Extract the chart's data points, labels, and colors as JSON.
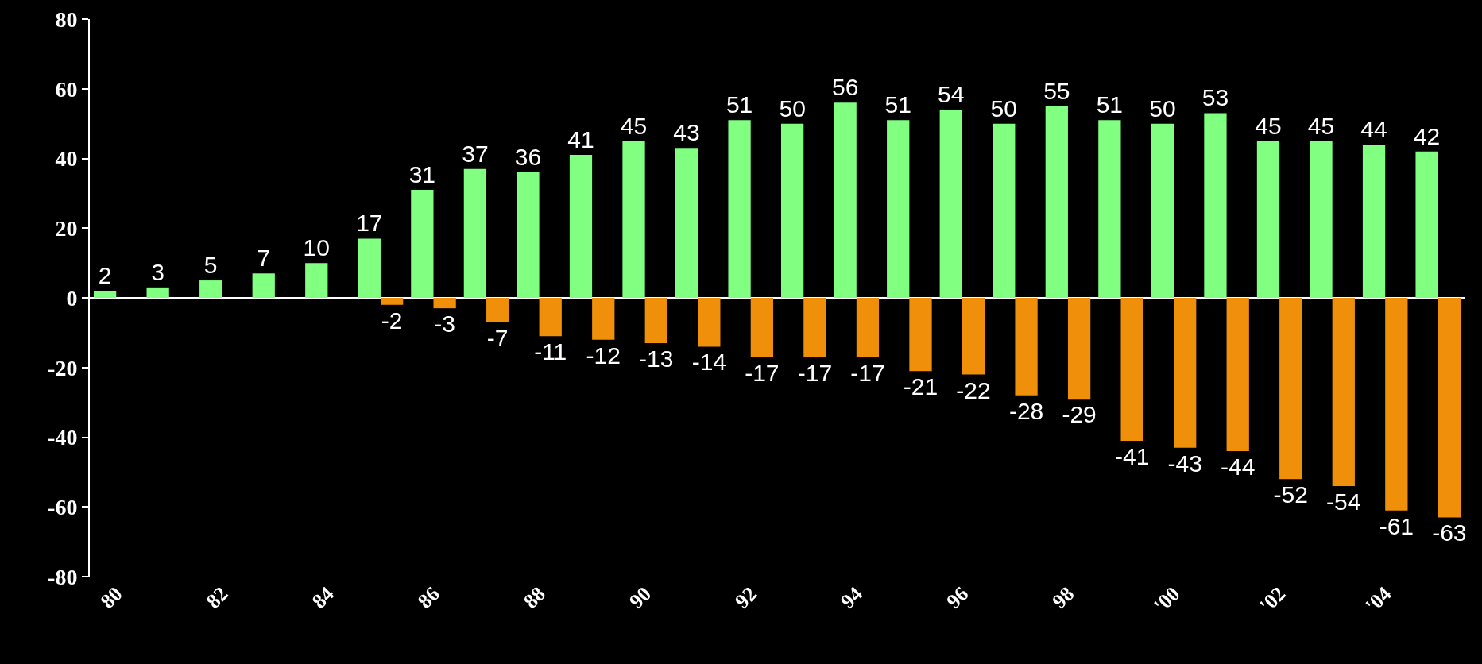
{
  "chart_data": {
    "type": "bar",
    "categories": [
      "80",
      null,
      "82",
      null,
      "84",
      null,
      "86",
      null,
      "88",
      null,
      "90",
      null,
      "92",
      null,
      "94",
      null,
      "96",
      null,
      "98",
      null,
      "'00",
      null,
      "'02",
      null,
      "'04",
      null
    ],
    "series": [
      {
        "color": "#80ff80",
        "values": [
          2,
          3,
          5,
          7,
          10,
          17,
          31,
          37,
          36,
          41,
          45,
          43,
          51,
          50,
          56,
          51,
          54,
          50,
          55,
          51,
          50,
          53,
          45,
          45,
          44,
          42
        ]
      },
      {
        "color": "#f0900a",
        "values": [
          null,
          null,
          null,
          null,
          null,
          -2,
          -3,
          -7,
          -11,
          -12,
          -13,
          -14,
          -17,
          -17,
          -17,
          -21,
          -22,
          -28,
          -29,
          -41,
          -43,
          -44,
          -52,
          -54,
          -61,
          -63
        ]
      }
    ],
    "ylim": [
      -80,
      80
    ],
    "yticks": [
      -80,
      -60,
      -40,
      -20,
      0,
      20,
      40,
      60,
      80
    ],
    "data_labels": true
  }
}
